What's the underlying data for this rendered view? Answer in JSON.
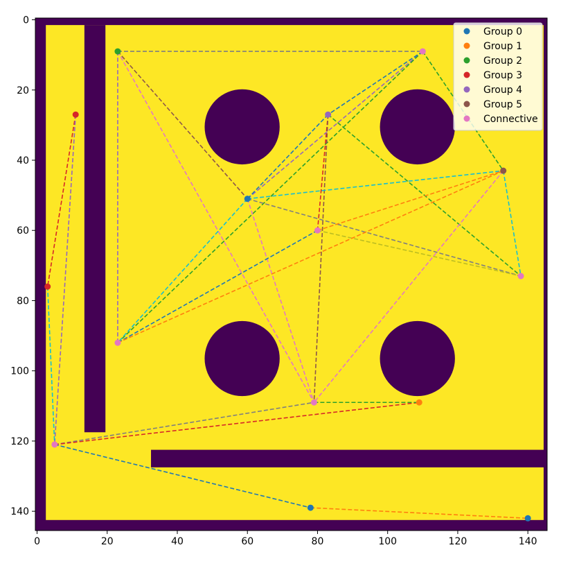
{
  "chart_data": {
    "type": "scatter",
    "title": "",
    "xlabel": "",
    "ylabel": "",
    "xlim": [
      -0.5,
      145.5
    ],
    "ylim": [
      145.5,
      -0.5
    ],
    "x_ticks": [
      0,
      20,
      40,
      60,
      80,
      100,
      120,
      140
    ],
    "y_ticks": [
      0,
      20,
      40,
      60,
      80,
      100,
      120,
      140
    ],
    "grid": false,
    "legend_position": "top-right",
    "colors": {
      "free": "#fde725",
      "wall": "#440154",
      "series": [
        "#1f77b4",
        "#ff7f0e",
        "#2ca02c",
        "#d62728",
        "#9467bd",
        "#8c564b",
        "#e377c2",
        "#7f7f7f",
        "#bcbd22",
        "#17becf"
      ]
    },
    "map": {
      "size": [
        146,
        146
      ],
      "rects": [
        {
          "x0": -0.5,
          "y0": -0.5,
          "x1": 2.5,
          "y1": 145.5
        },
        {
          "x0": -0.5,
          "y0": -0.5,
          "x1": 145.5,
          "y1": 1.5
        },
        {
          "x0": 144.5,
          "y0": -0.5,
          "x1": 145.5,
          "y1": 145.5
        },
        {
          "x0": -0.5,
          "y0": 142.5,
          "x1": 145.5,
          "y1": 145.5
        },
        {
          "x0": 13.5,
          "y0": 1.5,
          "x1": 19.5,
          "y1": 117.5
        },
        {
          "x0": 32.5,
          "y0": 122.5,
          "x1": 145.5,
          "y1": 127.5
        }
      ],
      "circles": [
        {
          "cx": 58.5,
          "cy": 30.5,
          "r": 10.7
        },
        {
          "cx": 108.5,
          "cy": 30.5,
          "r": 10.7
        },
        {
          "cx": 58.5,
          "cy": 96.5,
          "r": 10.7
        },
        {
          "cx": 108.5,
          "cy": 96.5,
          "r": 10.7
        }
      ]
    },
    "series": [
      {
        "name": "Group 0",
        "points": [
          [
            60,
            51
          ],
          [
            78,
            139
          ],
          [
            140,
            142
          ]
        ]
      },
      {
        "name": "Group 1",
        "points": [
          [
            109,
            109
          ]
        ]
      },
      {
        "name": "Group 2",
        "points": [
          [
            23,
            9
          ]
        ]
      },
      {
        "name": "Group 3",
        "points": [
          [
            11,
            27
          ],
          [
            3,
            76
          ]
        ]
      },
      {
        "name": "Group 4",
        "points": [
          [
            83,
            27
          ]
        ]
      },
      {
        "name": "Group 5",
        "points": [
          [
            133,
            43
          ]
        ]
      },
      {
        "name": "Connective",
        "points": [
          [
            110,
            9
          ],
          [
            80,
            60
          ],
          [
            138,
            73
          ],
          [
            23,
            92
          ],
          [
            79,
            109
          ],
          [
            5,
            121
          ]
        ]
      }
    ],
    "segments": [
      {
        "from": [
          23,
          9
        ],
        "to": [
          110,
          9
        ],
        "color": "#7f7f7f"
      },
      {
        "from": [
          23,
          9
        ],
        "to": [
          23,
          92
        ],
        "color": "#9467bd"
      },
      {
        "from": [
          23,
          9
        ],
        "to": [
          60,
          51
        ],
        "color": "#8c564b"
      },
      {
        "from": [
          23,
          9
        ],
        "to": [
          79,
          109
        ],
        "color": "#e377c2"
      },
      {
        "from": [
          110,
          9
        ],
        "to": [
          60,
          51
        ],
        "color": "#9467bd"
      },
      {
        "from": [
          110,
          9
        ],
        "to": [
          23,
          92
        ],
        "color": "#2ca02c"
      },
      {
        "from": [
          110,
          9
        ],
        "to": [
          133,
          43
        ],
        "color": "#2ca02c"
      },
      {
        "from": [
          110,
          9
        ],
        "to": [
          83,
          27
        ],
        "color": "#1f77b4"
      },
      {
        "from": [
          83,
          27
        ],
        "to": [
          60,
          51
        ],
        "color": "#1f77b4"
      },
      {
        "from": [
          83,
          27
        ],
        "to": [
          80,
          60
        ],
        "color": "#d62728"
      },
      {
        "from": [
          83,
          27
        ],
        "to": [
          79,
          109
        ],
        "color": "#8c564b"
      },
      {
        "from": [
          83,
          27
        ],
        "to": [
          138,
          73
        ],
        "color": "#2ca02c"
      },
      {
        "from": [
          60,
          51
        ],
        "to": [
          133,
          43
        ],
        "color": "#17becf"
      },
      {
        "from": [
          60,
          51
        ],
        "to": [
          138,
          73
        ],
        "color": "#7f7f7f"
      },
      {
        "from": [
          60,
          51
        ],
        "to": [
          23,
          92
        ],
        "color": "#17becf"
      },
      {
        "from": [
          60,
          51
        ],
        "to": [
          79,
          109
        ],
        "color": "#e377c2"
      },
      {
        "from": [
          80,
          60
        ],
        "to": [
          23,
          92
        ],
        "color": "#1f77b4"
      },
      {
        "from": [
          80,
          60
        ],
        "to": [
          133,
          43
        ],
        "color": "#ff7f0e"
      },
      {
        "from": [
          80,
          60
        ],
        "to": [
          138,
          73
        ],
        "color": "#bcbd22"
      },
      {
        "from": [
          23,
          92
        ],
        "to": [
          133,
          43
        ],
        "color": "#ff7f0e"
      },
      {
        "from": [
          133,
          43
        ],
        "to": [
          138,
          73
        ],
        "color": "#17becf"
      },
      {
        "from": [
          133,
          43
        ],
        "to": [
          79,
          109
        ],
        "color": "#e377c2"
      },
      {
        "from": [
          11,
          27
        ],
        "to": [
          3,
          76
        ],
        "color": "#d62728"
      },
      {
        "from": [
          11,
          27
        ],
        "to": [
          5,
          121
        ],
        "color": "#9467bd"
      },
      {
        "from": [
          3,
          76
        ],
        "to": [
          5,
          121
        ],
        "color": "#17becf"
      },
      {
        "from": [
          5,
          121
        ],
        "to": [
          79,
          109
        ],
        "color": "#7f7f7f"
      },
      {
        "from": [
          5,
          121
        ],
        "to": [
          109,
          109
        ],
        "color": "#d62728"
      },
      {
        "from": [
          79,
          109
        ],
        "to": [
          109,
          109
        ],
        "color": "#2ca02c"
      },
      {
        "from": [
          5,
          121
        ],
        "to": [
          78,
          139
        ],
        "color": "#1f77b4"
      },
      {
        "from": [
          78,
          139
        ],
        "to": [
          140,
          142
        ],
        "color": "#ff7f0e"
      }
    ]
  }
}
